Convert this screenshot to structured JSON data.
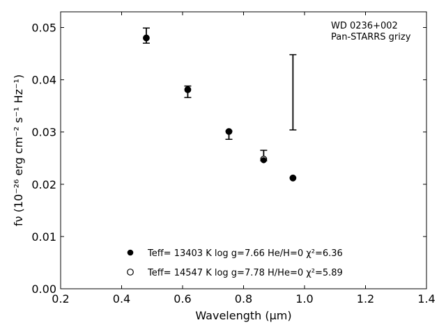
{
  "chart_data": {
    "type": "scatter",
    "xlabel": "Wavelength (μm)",
    "ylabel": "fν (10⁻²⁶ erg cm⁻² s⁻¹ Hz⁻¹)",
    "xlim": [
      0.2,
      1.4
    ],
    "ylim": [
      0.0,
      0.053
    ],
    "x_ticks": [
      0.2,
      0.4,
      0.6,
      0.8,
      1.0,
      1.2,
      1.4
    ],
    "y_ticks": [
      0.0,
      0.01,
      0.02,
      0.03,
      0.04,
      0.05
    ],
    "x_tick_labels": [
      "0.2",
      "0.4",
      "0.6",
      "0.8",
      "1.0",
      "1.2",
      "1.4"
    ],
    "y_tick_labels": [
      "0.00",
      "0.01",
      "0.02",
      "0.03",
      "0.04",
      "0.05"
    ],
    "annotation": [
      "WD 0236+002",
      "Pan-STARRS grizy"
    ],
    "grid": false,
    "observed": {
      "x": [
        0.481,
        0.617,
        0.752,
        0.866,
        0.962
      ],
      "y": [
        0.0484,
        0.0377,
        0.0292,
        0.0255,
        0.0376
      ],
      "yerr_low": [
        0.0014,
        0.0011,
        0.0006,
        0.001,
        0.0072
      ],
      "yerr_high": [
        0.0015,
        0.0011,
        0.001,
        0.001,
        0.0072
      ]
    },
    "series": [
      {
        "name": "Teff= 13403 K  log g=7.66  He/H=0  χ²=6.36",
        "marker": "filled-circle",
        "color": "#000000",
        "x": [
          0.481,
          0.617,
          0.752,
          0.866,
          0.962
        ],
        "y": [
          0.048,
          0.0381,
          0.0301,
          0.0246,
          0.0212
        ]
      },
      {
        "name": "Teff= 14547 K  log g=7.78  H/He=0  χ²=5.89",
        "marker": "open-circle",
        "color": "#000000",
        "x": [
          0.481,
          0.617,
          0.752,
          0.866,
          0.962
        ],
        "y": [
          0.048,
          0.0381,
          0.0301,
          0.0248,
          0.0212
        ]
      }
    ],
    "legend_placement": "lower-center"
  }
}
